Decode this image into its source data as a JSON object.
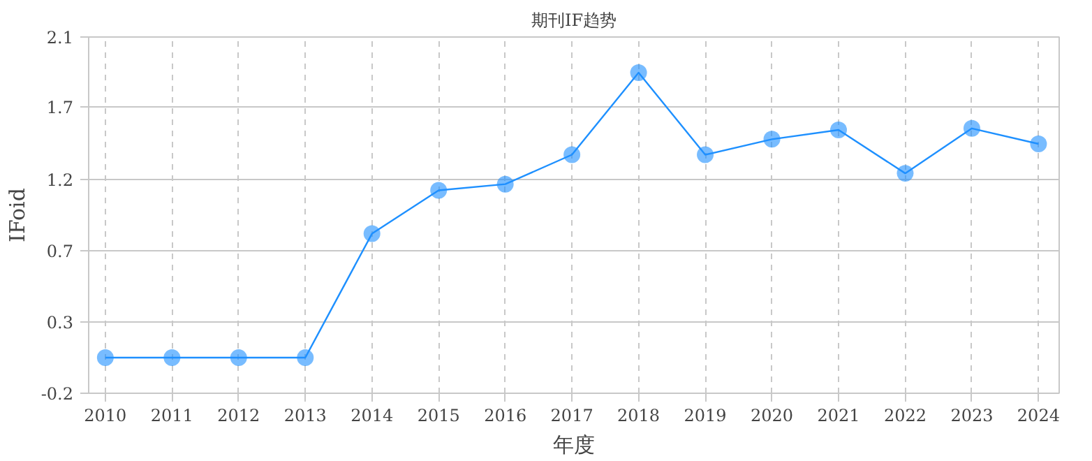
{
  "chart_data": {
    "type": "line",
    "title": "期刊IF趋势",
    "xlabel": "年度",
    "ylabel": "IFoid",
    "categories": [
      "2010",
      "2011",
      "2012",
      "2013",
      "2014",
      "2015",
      "2016",
      "2017",
      "2018",
      "2019",
      "2020",
      "2021",
      "2022",
      "2023",
      "2024"
    ],
    "series": [
      {
        "color": "#1e90ff",
        "values": [
          0.03,
          0.03,
          0.03,
          0.03,
          0.83,
          1.11,
          1.15,
          1.34,
          1.87,
          1.34,
          1.44,
          1.5,
          1.22,
          1.51,
          1.41
        ]
      }
    ],
    "ylim": [
      -0.2,
      2.1
    ],
    "yticks": [
      -0.2,
      {
        "value": 0.26,
        "label": "0.3"
      },
      {
        "value": 0.72,
        "label": "0.7"
      },
      {
        "value": 1.18,
        "label": "1.2"
      },
      {
        "value": 1.65,
        "label": "1.7"
      },
      2.1
    ],
    "grid": true,
    "marker": "circle",
    "line_style": "solid"
  }
}
